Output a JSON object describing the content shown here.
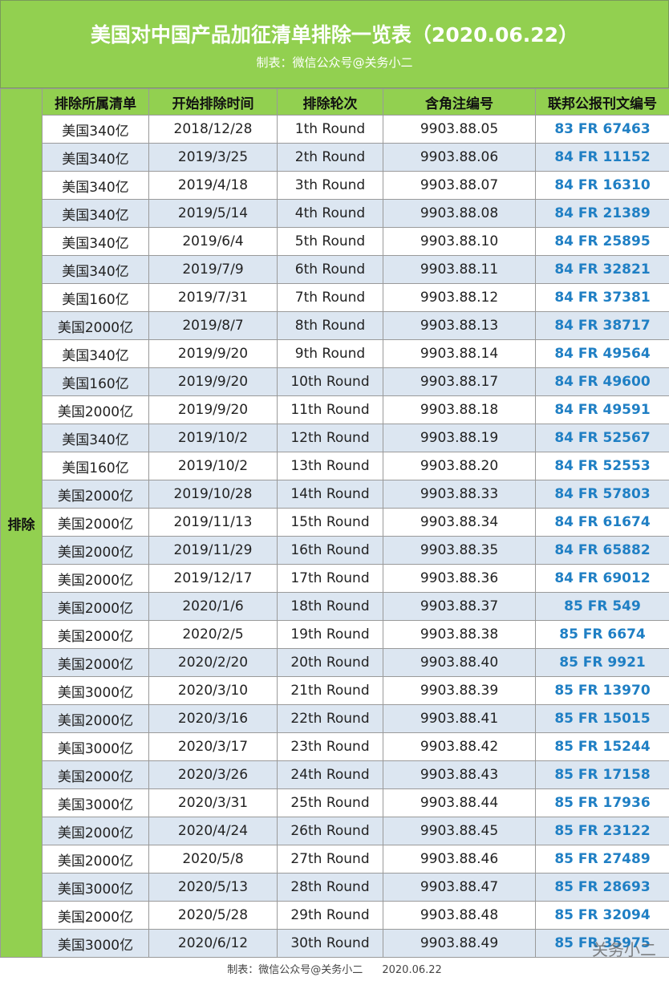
{
  "header": {
    "title": "美国对中国产品加征清单排除一览表（2020.06.22）",
    "subtitle": "制表：微信公众号@关务小二"
  },
  "table": {
    "section": "排除",
    "columns": [
      "排除所属清单",
      "开始排除时间",
      "排除轮次",
      "含角注编号",
      "联邦公报刊文编号"
    ],
    "rows": [
      [
        "美国340亿",
        "2018/12/28",
        "1th Round",
        "9903.88.05",
        "83 FR 67463"
      ],
      [
        "美国340亿",
        "2019/3/25",
        "2th Round",
        "9903.88.06",
        "84 FR 11152"
      ],
      [
        "美国340亿",
        "2019/4/18",
        "3th Round",
        "9903.88.07",
        "84 FR 16310"
      ],
      [
        "美国340亿",
        "2019/5/14",
        "4th Round",
        "9903.88.08",
        "84 FR 21389"
      ],
      [
        "美国340亿",
        "2019/6/4",
        "5th Round",
        "9903.88.10",
        "84 FR 25895"
      ],
      [
        "美国340亿",
        "2019/7/9",
        "6th Round",
        "9903.88.11",
        "84 FR 32821"
      ],
      [
        "美国160亿",
        "2019/7/31",
        "7th Round",
        "9903.88.12",
        "84 FR 37381"
      ],
      [
        "美国2000亿",
        "2019/8/7",
        "8th Round",
        "9903.88.13",
        "84 FR 38717"
      ],
      [
        "美国340亿",
        "2019/9/20",
        "9th Round",
        "9903.88.14",
        "84 FR 49564"
      ],
      [
        "美国160亿",
        "2019/9/20",
        "10th Round",
        "9903.88.17",
        "84 FR 49600"
      ],
      [
        "美国2000亿",
        "2019/9/20",
        "11th Round",
        "9903.88.18",
        "84 FR 49591"
      ],
      [
        "美国340亿",
        "2019/10/2",
        "12th Round",
        "9903.88.19",
        "84 FR 52567"
      ],
      [
        "美国160亿",
        "2019/10/2",
        "13th Round",
        "9903.88.20",
        "84 FR 52553"
      ],
      [
        "美国2000亿",
        "2019/10/28",
        "14th Round",
        "9903.88.33",
        "84 FR 57803"
      ],
      [
        "美国2000亿",
        "2019/11/13",
        "15th Round",
        "9903.88.34",
        "84 FR 61674"
      ],
      [
        "美国2000亿",
        "2019/11/29",
        "16th Round",
        "9903.88.35",
        "84 FR 65882"
      ],
      [
        "美国2000亿",
        "2019/12/17",
        "17th Round",
        "9903.88.36",
        "84 FR 69012"
      ],
      [
        "美国2000亿",
        "2020/1/6",
        "18th Round",
        "9903.88.37",
        "85 FR 549"
      ],
      [
        "美国2000亿",
        "2020/2/5",
        "19th Round",
        "9903.88.38",
        "85 FR 6674"
      ],
      [
        "美国2000亿",
        "2020/2/20",
        "20th Round",
        "9903.88.40",
        "85 FR 9921"
      ],
      [
        "美国3000亿",
        "2020/3/10",
        "21th Round",
        "9903.88.39",
        "85 FR 13970"
      ],
      [
        "美国2000亿",
        "2020/3/16",
        "22th Round",
        "9903.88.41",
        "85 FR 15015"
      ],
      [
        "美国3000亿",
        "2020/3/17",
        "23th Round",
        "9903.88.42",
        "85 FR 15244"
      ],
      [
        "美国2000亿",
        "2020/3/26",
        "24th Round",
        "9903.88.43",
        "85 FR 17158"
      ],
      [
        "美国3000亿",
        "2020/3/31",
        "25th Round",
        "9903.88.44",
        "85 FR 17936"
      ],
      [
        "美国2000亿",
        "2020/4/24",
        "26th Round",
        "9903.88.45",
        "85 FR 23122"
      ],
      [
        "美国2000亿",
        "2020/5/8",
        "27th Round",
        "9903.88.46",
        "85 FR 27489"
      ],
      [
        "美国3000亿",
        "2020/5/13",
        "28th Round",
        "9903.88.47",
        "85 FR 28693"
      ],
      [
        "美国2000亿",
        "2020/5/28",
        "29th Round",
        "9903.88.48",
        "85 FR 32094"
      ],
      [
        "美国3000亿",
        "2020/6/12",
        "30th Round",
        "9903.88.49",
        "85 FR 35975"
      ]
    ]
  },
  "footer": {
    "credit": "制表：微信公众号@关务小二",
    "date": "2020.06.22"
  },
  "watermark": "关务小二"
}
